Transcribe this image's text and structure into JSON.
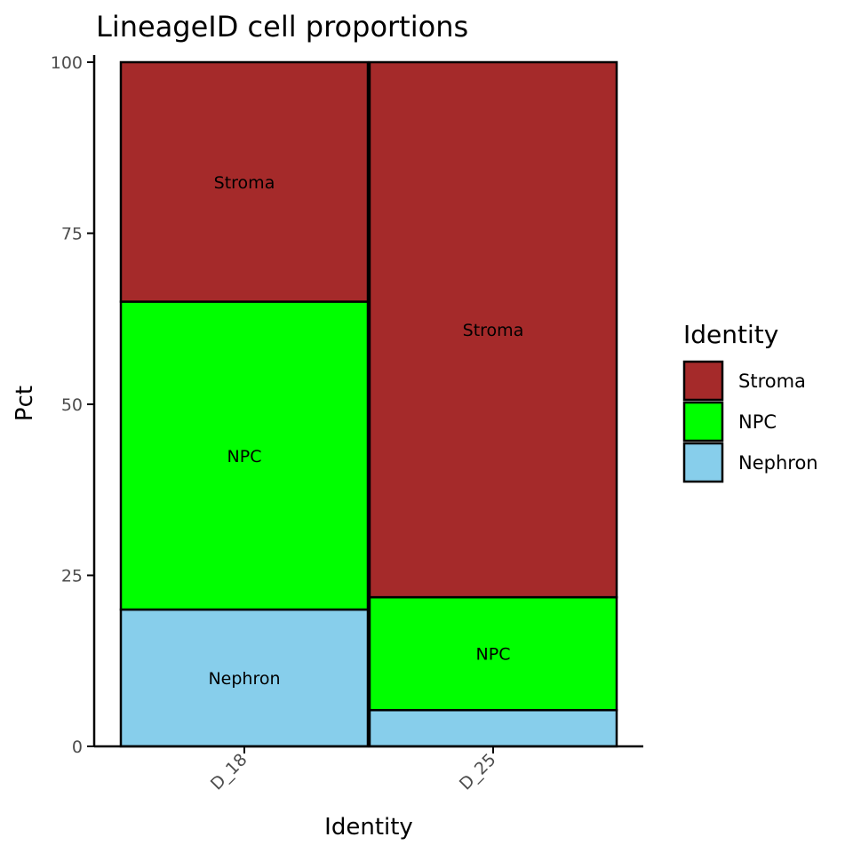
{
  "chart_data": {
    "type": "bar",
    "stacked": true,
    "title": "LineageID cell proportions",
    "xlabel": "Identity",
    "ylabel": "Pct",
    "ylim": [
      0,
      100
    ],
    "yticks": [
      0,
      25,
      50,
      75,
      100
    ],
    "categories": [
      "D_18",
      "D_25"
    ],
    "series": [
      {
        "name": "Nephron",
        "color": "#87ceeb",
        "values": [
          20,
          5.3
        ]
      },
      {
        "name": "NPC",
        "color": "#00ff00",
        "values": [
          45,
          16.5
        ]
      },
      {
        "name": "Stroma",
        "color": "#a52a2a",
        "values": [
          35,
          78.2
        ]
      }
    ],
    "segment_labels": [
      [
        "Nephron",
        "NPC",
        "Stroma"
      ],
      [
        "",
        "NPC",
        "Stroma"
      ]
    ],
    "legend": {
      "title": "Identity",
      "position": "right",
      "items": [
        "Stroma",
        "NPC",
        "Nephron"
      ]
    },
    "grid": false
  }
}
